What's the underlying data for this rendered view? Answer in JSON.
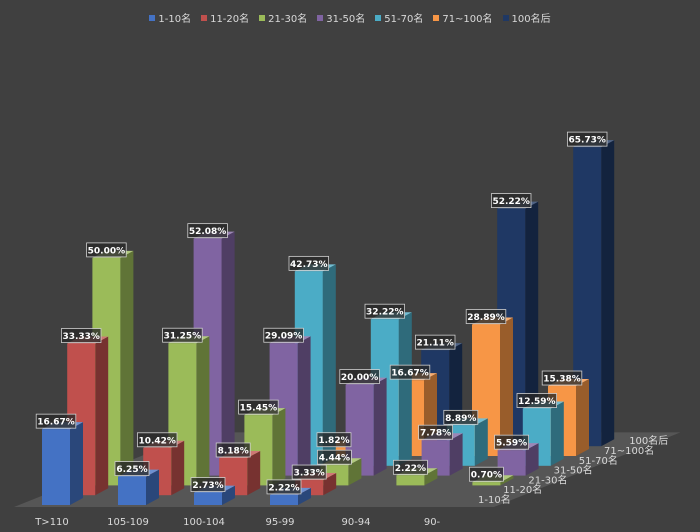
{
  "chart_data": {
    "type": "bar",
    "subtype": "3d-column",
    "categories": [
      "T>110",
      "105-109",
      "100-104",
      "95-99",
      "90-94",
      "90-"
    ],
    "series": [
      {
        "name": "1-10名",
        "color": "#4472c4",
        "values": [
          16.67,
          6.25,
          2.73,
          2.22,
          null,
          null
        ]
      },
      {
        "name": "11-20名",
        "color": "#c0504d",
        "values": [
          33.33,
          10.42,
          8.18,
          3.33,
          null,
          null
        ]
      },
      {
        "name": "21-30名",
        "color": "#9bbb59",
        "values": [
          50.0,
          31.25,
          15.45,
          4.44,
          2.22,
          0.7
        ]
      },
      {
        "name": "31-50名",
        "color": "#8064a2",
        "values": [
          null,
          52.08,
          29.09,
          20.0,
          7.78,
          5.59
        ]
      },
      {
        "name": "51-70名",
        "color": "#4bacc6",
        "values": [
          null,
          null,
          42.73,
          32.22,
          8.89,
          12.59
        ]
      },
      {
        "name": "71~100名",
        "color": "#f79646",
        "values": [
          null,
          null,
          1.82,
          16.67,
          28.89,
          15.38
        ]
      },
      {
        "name": "100名后",
        "color": "#1f3864",
        "values": [
          null,
          null,
          null,
          21.11,
          52.22,
          65.73
        ]
      }
    ],
    "value_format": "percent",
    "legend": "top",
    "grid": false
  }
}
